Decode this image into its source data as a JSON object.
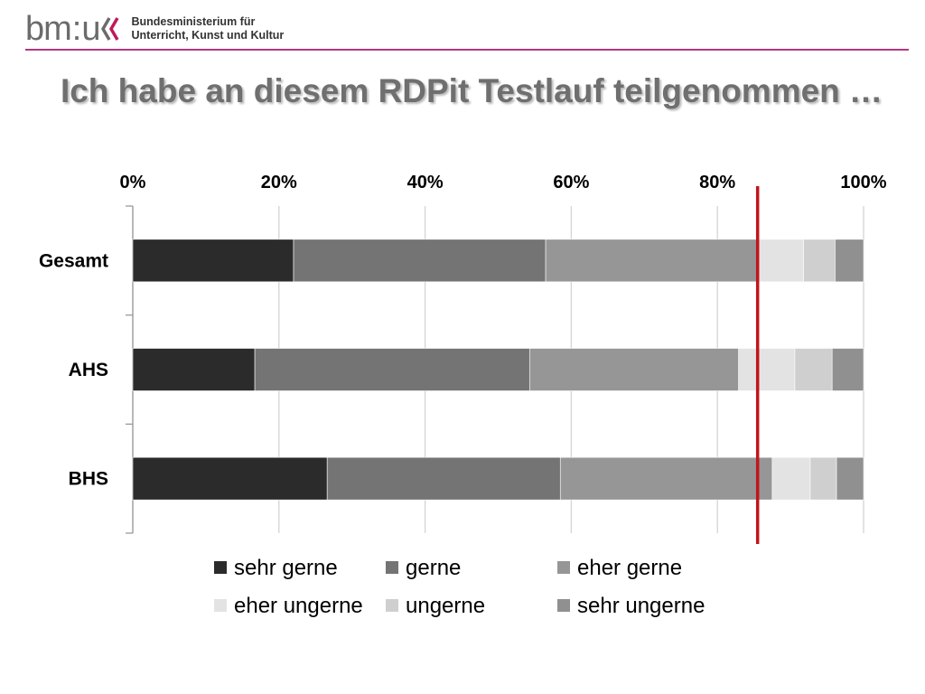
{
  "header": {
    "logo_bm": "bm",
    "logo_colon": ":",
    "logo_u": "u",
    "ministry_line1": "Bundesministerium für",
    "ministry_line2": "Unterricht, Kunst und Kultur",
    "accent_color": "#b03a7e",
    "logo_chevron_color": "#c2185b"
  },
  "title": "Ich habe an diesem RDPit Testlauf teilgenommen …",
  "chart_data": {
    "type": "bar",
    "orientation": "horizontal",
    "stacked": "percent",
    "title": "Ich habe an diesem RDPit Testlauf teilgenommen …",
    "categories": [
      "Gesamt",
      "AHS",
      "BHS"
    ],
    "x_tick_labels": [
      "0%",
      "20%",
      "40%",
      "60%",
      "80%",
      "100%"
    ],
    "xlim": [
      0,
      100
    ],
    "x_axis_position": "top",
    "grid": true,
    "legend_position": "bottom",
    "series": [
      {
        "name": "sehr gerne",
        "color": "#2b2b2b",
        "values": [
          22,
          16.7,
          26.6
        ]
      },
      {
        "name": "gerne",
        "color": "#747474",
        "values": [
          34.5,
          37.6,
          31.9
        ]
      },
      {
        "name": "eher gerne",
        "color": "#969696",
        "values": [
          29,
          28.6,
          29
        ]
      },
      {
        "name": "eher ungerne",
        "color": "#e3e3e3",
        "values": [
          6.3,
          7.7,
          5.2
        ]
      },
      {
        "name": "ungerne",
        "color": "#cfcfcf",
        "values": [
          4.3,
          5.1,
          3.6
        ]
      },
      {
        "name": "sehr ungerne",
        "color": "#909090",
        "values": [
          3.9,
          4.3,
          3.7
        ]
      }
    ],
    "reference_line": {
      "x": 85.5,
      "color": "#c0161c"
    }
  }
}
